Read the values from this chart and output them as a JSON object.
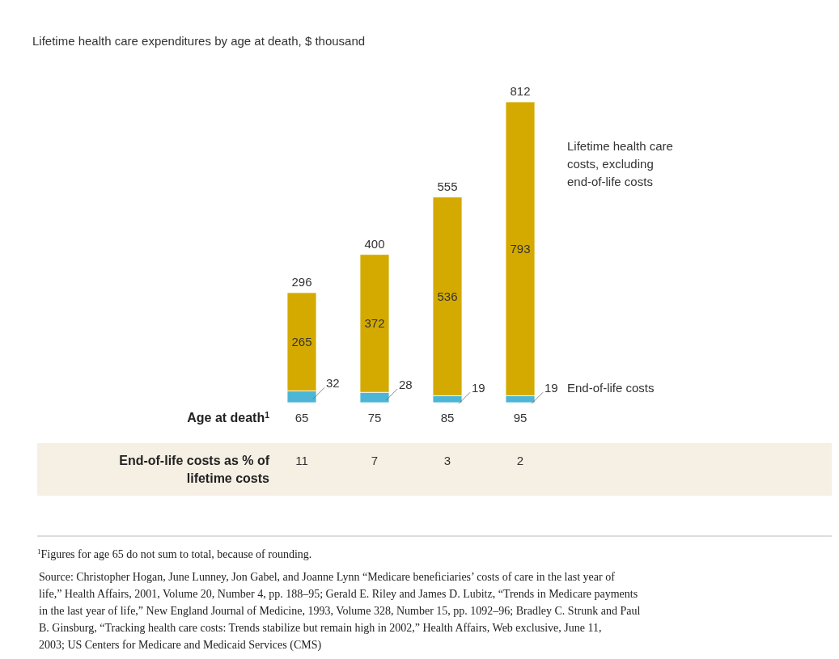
{
  "chart_data": {
    "type": "bar",
    "stacked": true,
    "title": "Lifetime health care expenditures by age at death, $ thousand",
    "xlabel": "Age at death$^{1}$",
    "categories": [
      "65",
      "75",
      "85",
      "95"
    ],
    "series": [
      {
        "name": "End-of-life costs",
        "color": "#4db6d6",
        "values": [
          32,
          28,
          19,
          19
        ]
      },
      {
        "name": "Lifetime health care costs, excluding end-of-life costs",
        "color": "#d4aa00",
        "values": [
          265,
          372,
          536,
          793
        ]
      }
    ],
    "data_labels": true,
    "totals": [
      "296",
      "400",
      "555",
      "812"
    ],
    "annotations": [
      "End-of-life costs as % of lifetime costs",
      "11",
      "7",
      "3",
      "2",
      "$^{1}$Figures for age 65 do not sum to total, because of rounding.",
      "Source: Christopher Hogan, June Lunney, Jon Gabel, and Joanne Lynn “Medicare beneficiaries’ costs of care in the last year of life,” Health Affairs, 2001, Volume 20, Number 4, pp. 188–95; Gerald E. Riley and James D. Lubitz, “Trends in Medicare payments in the last year of life,” New England Journal of Medicine, 1993, Volume 328, Number 15, pp. 1092–96; Bradley C. Strunk and Paul B. Ginsburg, “Tracking health care costs: Trends stabilize but remain high in 2002,” Health Affairs, Web exclusive, June 11, 2003; US Centers for Medicare and Medicaid Services (CMS)"
    ],
    "grid": false
  }
}
